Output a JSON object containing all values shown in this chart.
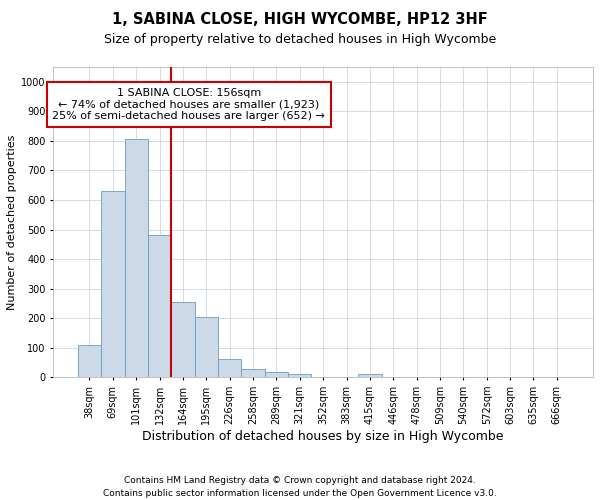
{
  "title1": "1, SABINA CLOSE, HIGH WYCOMBE, HP12 3HF",
  "title2": "Size of property relative to detached houses in High Wycombe",
  "xlabel": "Distribution of detached houses by size in High Wycombe",
  "ylabel": "Number of detached properties",
  "categories": [
    "38sqm",
    "69sqm",
    "101sqm",
    "132sqm",
    "164sqm",
    "195sqm",
    "226sqm",
    "258sqm",
    "289sqm",
    "321sqm",
    "352sqm",
    "383sqm",
    "415sqm",
    "446sqm",
    "478sqm",
    "509sqm",
    "540sqm",
    "572sqm",
    "603sqm",
    "635sqm",
    "666sqm"
  ],
  "values": [
    110,
    630,
    805,
    480,
    255,
    205,
    63,
    27,
    18,
    10,
    0,
    0,
    10,
    0,
    0,
    0,
    0,
    0,
    0,
    0,
    0
  ],
  "bar_color": "#ccd9e8",
  "bar_edge_color": "#6a9ec0",
  "vline_color": "#cc0000",
  "annotation_text": "1 SABINA CLOSE: 156sqm\n← 74% of detached houses are smaller (1,923)\n25% of semi-detached houses are larger (652) →",
  "annotation_box_color": "#ffffff",
  "annotation_box_edge": "#cc0000",
  "ylim": [
    0,
    1050
  ],
  "yticks": [
    0,
    100,
    200,
    300,
    400,
    500,
    600,
    700,
    800,
    900,
    1000
  ],
  "footnote1": "Contains HM Land Registry data © Crown copyright and database right 2024.",
  "footnote2": "Contains public sector information licensed under the Open Government Licence v3.0.",
  "bg_color": "#ffffff",
  "grid_color": "#ccd6e0",
  "title1_fontsize": 10.5,
  "title2_fontsize": 9,
  "xlabel_fontsize": 9,
  "ylabel_fontsize": 8,
  "tick_fontsize": 7,
  "footnote_fontsize": 6.5,
  "annot_fontsize": 8
}
